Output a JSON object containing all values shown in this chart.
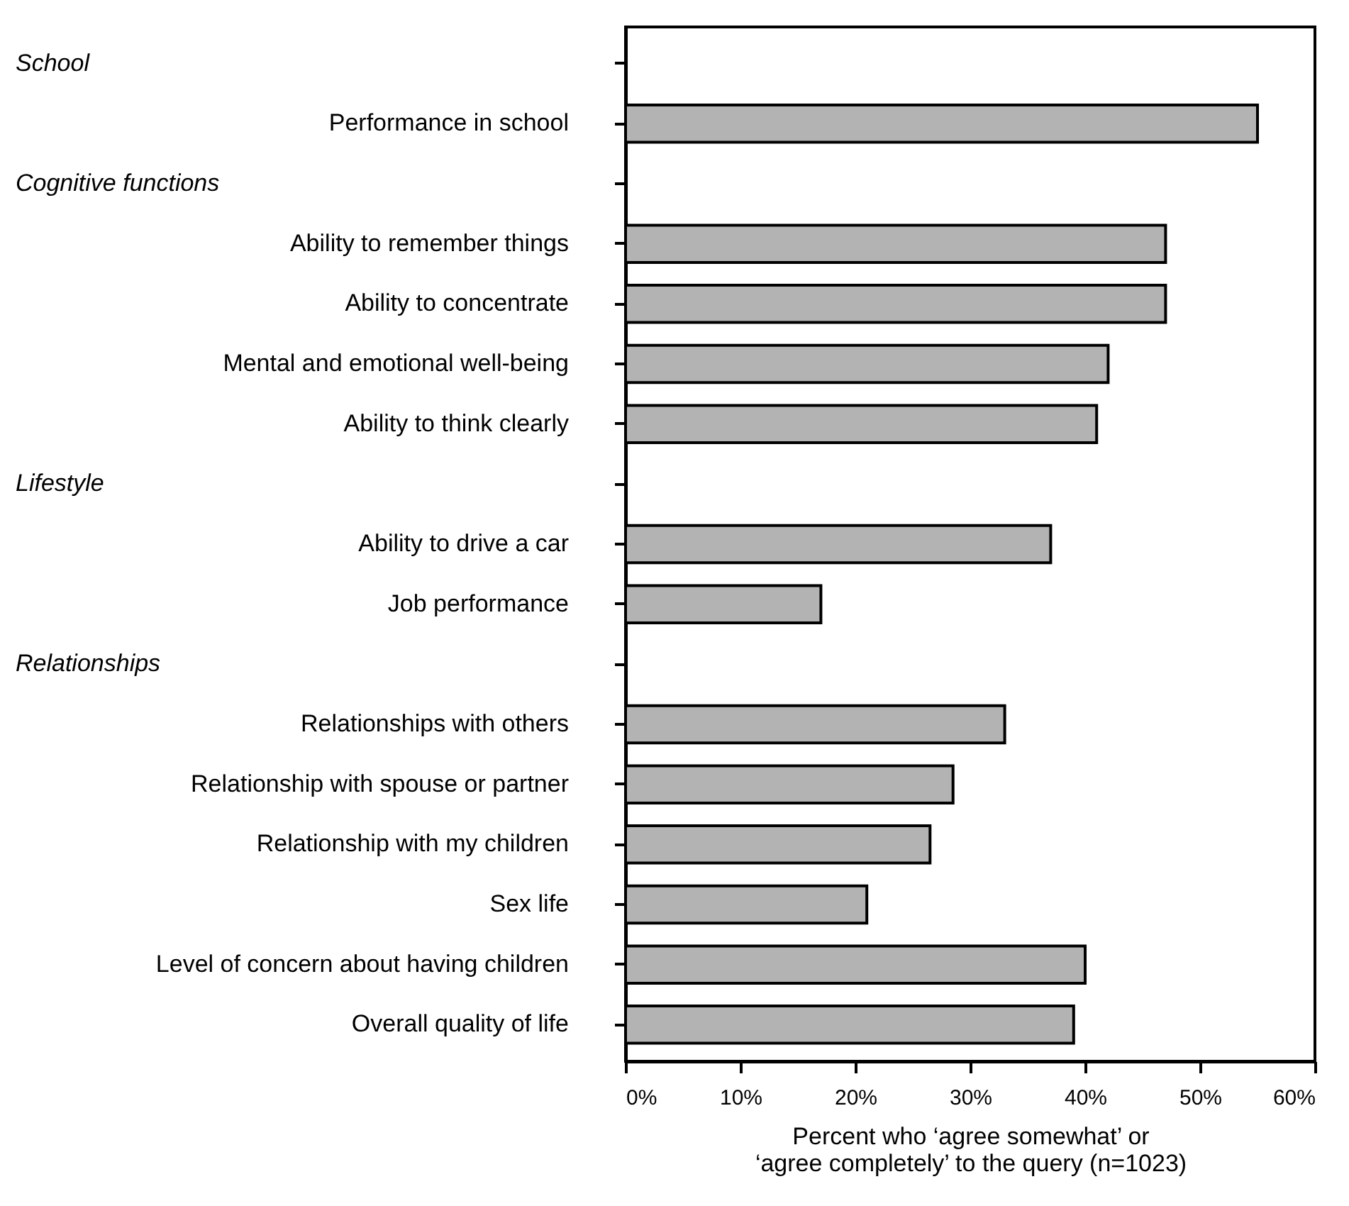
{
  "chart_data": {
    "type": "bar",
    "orientation": "horizontal",
    "categories": [
      null,
      "Performance in school",
      null,
      "Ability to remember things",
      "Ability to concentrate",
      "Mental and emotional well-being",
      "Ability to think clearly",
      null,
      "Ability to drive a car",
      "Job performance",
      null,
      "Relationships with others",
      "Relationship with spouse or partner",
      "Relationship with my children",
      "Sex life",
      "Level of concern about having children",
      "Overall quality of life"
    ],
    "values": [
      null,
      55,
      null,
      47,
      47,
      42,
      41,
      null,
      37,
      17,
      null,
      33,
      28.5,
      26.5,
      21,
      40,
      39
    ],
    "color": "#b3b3b3",
    "annotations": [
      "School",
      "Cognitive functions",
      "Lifestyle",
      "Relationships"
    ],
    "xlabel": "Percent who ‘agree somewhat’ or\n‘agree completely’ to the query (n=1023)",
    "xlim": [
      0,
      60
    ],
    "xticks": [
      {
        "value": 0,
        "label": "0%"
      },
      {
        "value": 10,
        "label": "10%"
      },
      {
        "value": 20,
        "label": "20%"
      },
      {
        "value": 30,
        "label": "30%"
      },
      {
        "value": 40,
        "label": "40%"
      },
      {
        "value": 50,
        "label": "50%"
      },
      {
        "value": 60,
        "label": "60%"
      }
    ],
    "grid": false
  }
}
